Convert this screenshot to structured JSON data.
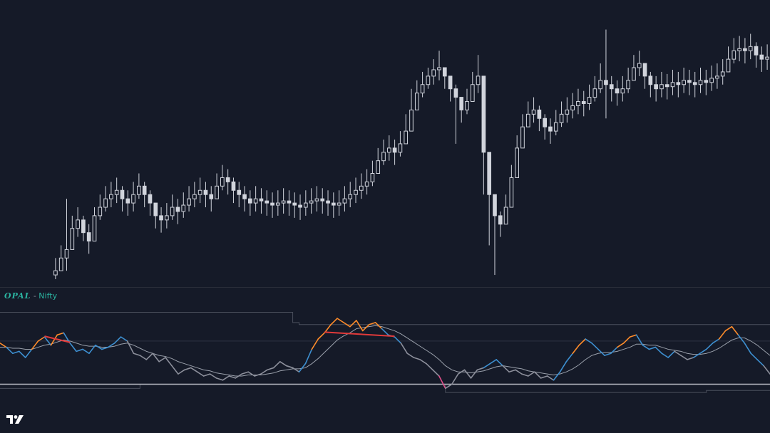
{
  "indicator": {
    "name": "OPAL",
    "separator": " - ",
    "symbol": "Nifty"
  },
  "brand": {
    "logo": "tradingview-logo-icon"
  },
  "colors": {
    "background": "#151a28",
    "candle": "#d1d4dc",
    "pane_divider": "#2a2e39",
    "osc_neutral": "#8c8f9b",
    "osc_bull": "#3d8fd0",
    "osc_strong": "#ff8c2a",
    "osc_oversold": "#e0508a",
    "signal": "#9aa0ab",
    "divergence": "#e23a3a",
    "band": "#4a4f5c",
    "baseline": "#b9bcc4"
  },
  "chart_data": [
    {
      "type": "candlestick",
      "title": "",
      "xlabel": "",
      "ylabel": "",
      "grid": false,
      "ylim": [
        0,
        100
      ],
      "close": [
        4,
        10,
        14,
        24,
        28,
        22,
        18,
        30,
        34,
        38,
        40,
        42,
        38,
        36,
        40,
        44,
        40,
        36,
        30,
        28,
        30,
        34,
        32,
        35,
        38,
        40,
        42,
        40,
        38,
        44,
        48,
        46,
        42,
        40,
        38,
        36,
        38,
        37,
        36,
        35,
        36,
        37,
        36,
        35,
        34,
        36,
        37,
        38,
        37,
        36,
        35,
        36,
        38,
        40,
        42,
        44,
        46,
        50,
        56,
        60,
        62,
        60,
        64,
        70,
        80,
        88,
        92,
        96,
        99,
        100,
        96,
        90,
        86,
        80,
        84,
        92,
        96,
        60,
        40,
        30,
        26,
        34,
        48,
        62,
        72,
        78,
        80,
        76,
        72,
        70,
        74,
        78,
        80,
        82,
        84,
        83,
        86,
        90,
        94,
        92,
        90,
        88,
        90,
        94,
        100,
        102,
        96,
        92,
        90,
        92,
        91,
        93,
        92,
        94,
        93,
        92,
        94,
        93,
        95,
        96,
        98,
        104,
        108,
        109,
        108,
        110,
        106,
        104,
        105
      ],
      "high": [
        10,
        16,
        38,
        30,
        34,
        30,
        26,
        34,
        40,
        44,
        46,
        48,
        44,
        42,
        46,
        50,
        46,
        42,
        36,
        34,
        36,
        40,
        38,
        41,
        44,
        46,
        48,
        46,
        44,
        50,
        54,
        52,
        48,
        46,
        44,
        42,
        44,
        43,
        42,
        41,
        42,
        43,
        42,
        41,
        40,
        42,
        43,
        44,
        43,
        42,
        41,
        42,
        44,
        46,
        48,
        50,
        52,
        56,
        62,
        66,
        68,
        66,
        70,
        78,
        90,
        94,
        98,
        100,
        104,
        108,
        100,
        96,
        92,
        86,
        90,
        98,
        106,
        68,
        48,
        40,
        32,
        40,
        54,
        68,
        78,
        84,
        86,
        82,
        78,
        76,
        80,
        84,
        86,
        88,
        90,
        89,
        92,
        96,
        102,
        118,
        96,
        94,
        96,
        100,
        106,
        108,
        102,
        98,
        96,
        98,
        97,
        99,
        98,
        100,
        99,
        98,
        100,
        99,
        101,
        102,
        104,
        110,
        114,
        115,
        114,
        116,
        112,
        110,
        111
      ],
      "low": [
        0,
        4,
        4,
        18,
        20,
        18,
        12,
        24,
        28,
        32,
        34,
        36,
        32,
        30,
        32,
        38,
        34,
        30,
        24,
        22,
        24,
        28,
        26,
        29,
        32,
        34,
        36,
        34,
        32,
        38,
        42,
        40,
        36,
        34,
        32,
        30,
        32,
        31,
        30,
        29,
        30,
        31,
        30,
        29,
        28,
        30,
        31,
        32,
        31,
        30,
        29,
        30,
        32,
        34,
        36,
        38,
        40,
        44,
        50,
        54,
        56,
        54,
        58,
        64,
        74,
        82,
        86,
        90,
        92,
        94,
        90,
        84,
        64,
        74,
        78,
        86,
        88,
        40,
        16,
        2,
        20,
        28,
        42,
        56,
        66,
        72,
        74,
        70,
        66,
        64,
        68,
        72,
        74,
        76,
        78,
        77,
        80,
        84,
        88,
        76,
        84,
        82,
        84,
        88,
        94,
        96,
        90,
        86,
        84,
        86,
        85,
        87,
        86,
        88,
        87,
        86,
        88,
        87,
        89,
        90,
        92,
        98,
        102,
        103,
        102,
        104,
        100,
        98,
        99
      ]
    },
    {
      "type": "line",
      "title": "",
      "xlabel": "",
      "ylabel": "",
      "grid": false,
      "legend": "none",
      "ylim": [
        -10,
        80
      ],
      "series": [
        {
          "values": [
            40,
            36,
            30,
            32,
            26,
            34,
            42,
            46,
            38,
            48,
            50,
            40,
            32,
            34,
            30,
            38,
            34,
            36,
            40,
            46,
            42,
            30,
            28,
            24,
            30,
            22,
            26,
            18,
            10,
            14,
            16,
            12,
            8,
            10,
            6,
            4,
            8,
            6,
            10,
            12,
            8,
            10,
            14,
            16,
            22,
            18,
            16,
            12,
            20,
            34,
            44,
            50,
            58,
            64,
            60,
            56,
            62,
            52,
            58,
            60,
            54,
            48,
            46,
            40,
            30,
            26,
            24,
            20,
            14,
            8,
            -4,
            0,
            10,
            14,
            6,
            14,
            16,
            20,
            24,
            18,
            12,
            14,
            10,
            8,
            12,
            6,
            8,
            4,
            12,
            22,
            30,
            38,
            44,
            40,
            34,
            28,
            30,
            36,
            40,
            46,
            48,
            38,
            34,
            36,
            30,
            26,
            32,
            28,
            24,
            26,
            30,
            34,
            40,
            44,
            52,
            56,
            48,
            40,
            30,
            24,
            18,
            10
          ],
          "tone": [
            "strong",
            "strong",
            "bull",
            "bull",
            "bull",
            "bull",
            "strong",
            "strong",
            "bull",
            "strong",
            "strong",
            "bull",
            "bull",
            "bull",
            "bull",
            "bull",
            "bull",
            "bull",
            "bull",
            "bull",
            "bull",
            "neutral",
            "neutral",
            "neutral",
            "neutral",
            "neutral",
            "neutral",
            "neutral",
            "neutral",
            "neutral",
            "neutral",
            "neutral",
            "neutral",
            "neutral",
            "neutral",
            "neutral",
            "neutral",
            "neutral",
            "neutral",
            "neutral",
            "neutral",
            "neutral",
            "neutral",
            "neutral",
            "neutral",
            "neutral",
            "neutral",
            "neutral",
            "bull",
            "bull",
            "strong",
            "strong",
            "strong",
            "strong",
            "strong",
            "strong",
            "strong",
            "strong",
            "strong",
            "strong",
            "strong",
            "bull",
            "bull",
            "bull",
            "neutral",
            "neutral",
            "neutral",
            "neutral",
            "neutral",
            "neutral",
            "oversold",
            "neutral",
            "neutral",
            "neutral",
            "neutral",
            "neutral",
            "neutral",
            "bull",
            "bull",
            "bull",
            "neutral",
            "neutral",
            "neutral",
            "neutral",
            "neutral",
            "neutral",
            "neutral",
            "neutral",
            "bull",
            "bull",
            "bull",
            "strong",
            "strong",
            "bull",
            "bull",
            "bull",
            "bull",
            "bull",
            "strong",
            "strong",
            "strong",
            "bull",
            "bull",
            "bull",
            "bull",
            "bull",
            "bull",
            "neutral",
            "neutral",
            "neutral",
            "bull",
            "bull",
            "bull",
            "bull",
            "strong",
            "strong",
            "strong",
            "bull",
            "bull",
            "bull",
            "bull",
            "neutral"
          ]
        },
        {
          "values": [
            36,
            36,
            35,
            35,
            34,
            34,
            36,
            38,
            39,
            41,
            43,
            42,
            40,
            38,
            37,
            37,
            36,
            36,
            37,
            39,
            40,
            38,
            35,
            32,
            30,
            28,
            27,
            25,
            22,
            20,
            18,
            16,
            14,
            13,
            11,
            10,
            9,
            8,
            8,
            9,
            9,
            9,
            10,
            11,
            13,
            14,
            15,
            15,
            16,
            20,
            25,
            31,
            37,
            43,
            47,
            50,
            54,
            55,
            56,
            57,
            56,
            54,
            52,
            49,
            45,
            41,
            37,
            33,
            29,
            24,
            18,
            14,
            12,
            12,
            11,
            12,
            13,
            15,
            17,
            18,
            17,
            16,
            15,
            13,
            12,
            11,
            10,
            9,
            10,
            12,
            15,
            19,
            24,
            28,
            30,
            31,
            31,
            32,
            34,
            36,
            39,
            39,
            38,
            38,
            36,
            34,
            33,
            32,
            30,
            29,
            29,
            30,
            32,
            35,
            39,
            43,
            45,
            45,
            42,
            38,
            33,
            28
          ]
        }
      ],
      "reference_levels": [
        0,
        42
      ],
      "upper_band": [
        70,
        70,
        70,
        70,
        70,
        70,
        70,
        70,
        70,
        70,
        70,
        70,
        70,
        70,
        70,
        70,
        70,
        70,
        70,
        70,
        70,
        70,
        70,
        70,
        70,
        70,
        70,
        70,
        70,
        70,
        70,
        70,
        70,
        70,
        70,
        70,
        70,
        70,
        70,
        70,
        70,
        70,
        70,
        70,
        70,
        70,
        60,
        58,
        58,
        58,
        58,
        58,
        58,
        58,
        58,
        58,
        58,
        58,
        58,
        58,
        58,
        58,
        58,
        58,
        58,
        58,
        58,
        58,
        58,
        58,
        58,
        58,
        58,
        58,
        58,
        58,
        58,
        58,
        58,
        58,
        58,
        58,
        58,
        58,
        58,
        58,
        58,
        58,
        58,
        58,
        58,
        58,
        58,
        58,
        58,
        58,
        58,
        58,
        58,
        58,
        58,
        58,
        58,
        58,
        58,
        58,
        58,
        58,
        58,
        58,
        58,
        58,
        58,
        58,
        58,
        58,
        58,
        58,
        58,
        58,
        58,
        58
      ],
      "lower_band": [
        -4,
        -4,
        -4,
        -4,
        -4,
        -4,
        -4,
        -4,
        -4,
        -4,
        -4,
        -4,
        -4,
        -4,
        -4,
        -4,
        -4,
        -4,
        -4,
        -4,
        -4,
        -4,
        0,
        0,
        0,
        0,
        0,
        0,
        0,
        0,
        0,
        0,
        0,
        0,
        0,
        0,
        0,
        0,
        0,
        0,
        0,
        0,
        0,
        0,
        0,
        0,
        0,
        0,
        0,
        0,
        0,
        0,
        0,
        0,
        0,
        0,
        0,
        0,
        0,
        0,
        0,
        0,
        0,
        0,
        0,
        0,
        0,
        0,
        0,
        0,
        -8,
        -8,
        -8,
        -8,
        -8,
        -8,
        -8,
        -8,
        -8,
        -8,
        -8,
        -8,
        -8,
        -8,
        -8,
        -8,
        -8,
        -8,
        -8,
        -8,
        -8,
        -8,
        -8,
        -8,
        -8,
        -8,
        -8,
        -8,
        -8,
        -8,
        -8,
        -8,
        -8,
        -8,
        -8,
        -8,
        -8,
        -8,
        -8,
        -8,
        -8,
        -6,
        -6,
        -6,
        -6,
        -6,
        -6,
        -6,
        -6,
        -6,
        -6,
        -6,
        -6,
        -6,
        -6,
        -6
      ],
      "divergence_lines": [
        {
          "from": 7,
          "to": 11
        },
        {
          "from": 51,
          "to": 62
        }
      ]
    }
  ]
}
